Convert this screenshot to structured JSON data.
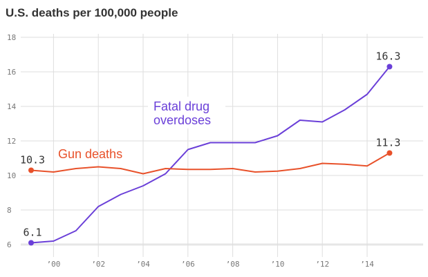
{
  "chart_data": {
    "type": "line",
    "title": "U.S. deaths per 100,000 people",
    "xlabel": "",
    "ylabel": "",
    "x": [
      1999,
      2000,
      2001,
      2002,
      2003,
      2004,
      2005,
      2006,
      2007,
      2008,
      2009,
      2010,
      2011,
      2012,
      2013,
      2014,
      2015
    ],
    "xlim": [
      1999,
      2015
    ],
    "ylim": [
      6,
      18
    ],
    "yticks": [
      "6",
      "8",
      "10",
      "12",
      "14",
      "16",
      "18"
    ],
    "xticks": [
      {
        "value": 2000,
        "label": "’00"
      },
      {
        "value": 2002,
        "label": "’02"
      },
      {
        "value": 2004,
        "label": "’04"
      },
      {
        "value": 2006,
        "label": "’06"
      },
      {
        "value": 2008,
        "label": "’08"
      },
      {
        "value": 2010,
        "label": "’10"
      },
      {
        "value": 2012,
        "label": "’12"
      },
      {
        "value": 2014,
        "label": "’14"
      }
    ],
    "grid": true,
    "series": [
      {
        "name": "Fatal drug overdoses",
        "label_lines": [
          "Fatal drug",
          "overdoses"
        ],
        "color": "#6a3fd8",
        "values": [
          6.1,
          6.2,
          6.8,
          8.2,
          8.9,
          9.4,
          10.1,
          11.5,
          11.9,
          11.9,
          11.9,
          12.3,
          13.2,
          13.1,
          13.8,
          14.7,
          16.3
        ],
        "start_label": "6.1",
        "end_label": "16.3"
      },
      {
        "name": "Gun deaths",
        "label_lines": [
          "Gun deaths"
        ],
        "color": "#e8512a",
        "values": [
          10.3,
          10.2,
          10.4,
          10.5,
          10.4,
          10.1,
          10.4,
          10.35,
          10.35,
          10.4,
          10.2,
          10.25,
          10.4,
          10.7,
          10.65,
          10.55,
          11.3
        ],
        "start_label": "10.3",
        "end_label": "11.3"
      }
    ]
  }
}
